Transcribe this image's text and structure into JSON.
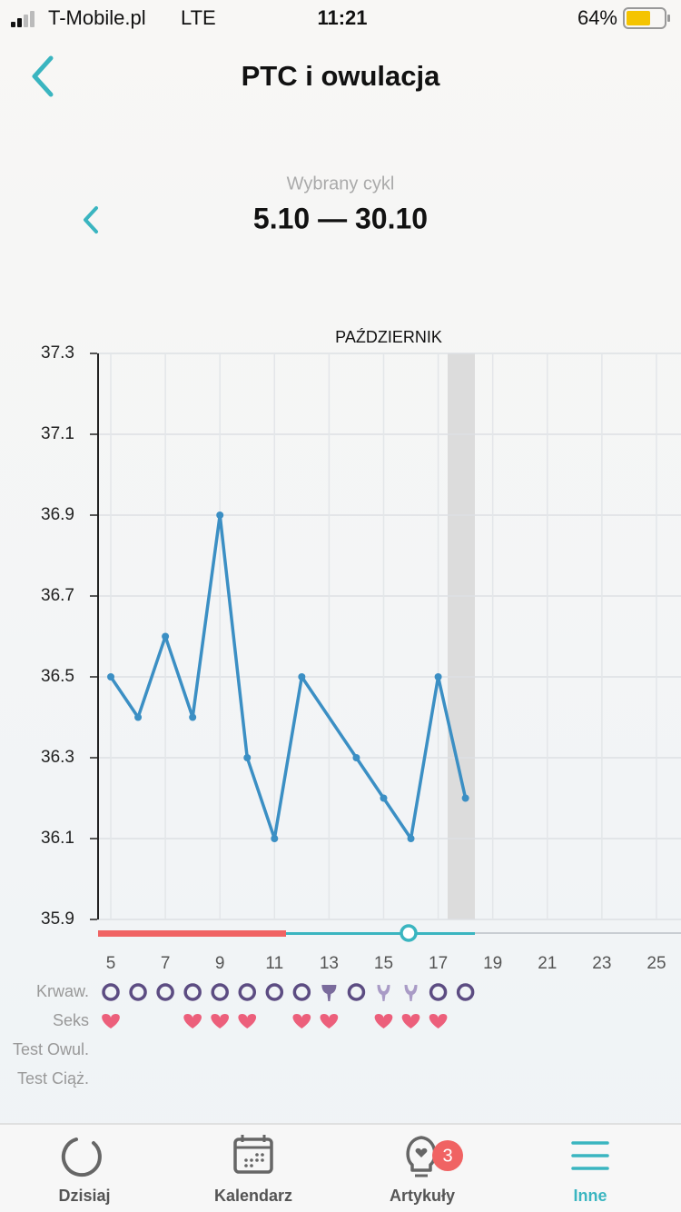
{
  "status_bar": {
    "carrier": "T-Mobile.pl",
    "network": "LTE",
    "time": "11:21",
    "battery": "64%"
  },
  "header": {
    "title": "PTC i owulacja"
  },
  "cycle": {
    "caption": "Wybrany cykl",
    "range": "5.10 — 30.10"
  },
  "chart_data": {
    "type": "line",
    "title": "PAŹDZIERNIK",
    "x": [
      5,
      6,
      7,
      8,
      9,
      10,
      11,
      12,
      14,
      15,
      16,
      17,
      18
    ],
    "values": [
      36.5,
      36.4,
      36.6,
      36.4,
      36.9,
      36.3,
      36.1,
      36.5,
      36.3,
      36.2,
      36.1,
      36.5,
      36.2
    ],
    "color": "#3b8fc4",
    "xlim": [
      4.5,
      25.9
    ],
    "xticks": [
      5,
      7,
      9,
      11,
      13,
      15,
      17,
      19,
      21,
      23,
      25
    ],
    "ylim": [
      35.9,
      37.3
    ],
    "yticks": [
      35.9,
      36.1,
      36.3,
      36.5,
      36.7,
      36.9,
      37.1,
      37.3
    ],
    "grid": true
  },
  "tracker": [
    {
      "label": "Krwaw.",
      "icons": [
        {
          "day": 5,
          "kind": "circle"
        },
        {
          "day": 6,
          "kind": "circle"
        },
        {
          "day": 7,
          "kind": "circle"
        },
        {
          "day": 8,
          "kind": "circle"
        },
        {
          "day": 9,
          "kind": "circle"
        },
        {
          "day": 10,
          "kind": "circle"
        },
        {
          "day": 11,
          "kind": "circle"
        },
        {
          "day": 12,
          "kind": "circle"
        },
        {
          "day": 13,
          "kind": "drop-dark"
        },
        {
          "day": 14,
          "kind": "circle"
        },
        {
          "day": 15,
          "kind": "drop-light"
        },
        {
          "day": 16,
          "kind": "drop-light"
        },
        {
          "day": 17,
          "kind": "circle"
        },
        {
          "day": 18,
          "kind": "circle"
        }
      ]
    },
    {
      "label": "Seks",
      "icons": [
        {
          "day": 5,
          "kind": "heart"
        },
        {
          "day": 8,
          "kind": "heart"
        },
        {
          "day": 9,
          "kind": "heart"
        },
        {
          "day": 10,
          "kind": "heart"
        },
        {
          "day": 12,
          "kind": "heart"
        },
        {
          "day": 13,
          "kind": "heart"
        },
        {
          "day": 15,
          "kind": "heart"
        },
        {
          "day": 16,
          "kind": "heart"
        },
        {
          "day": 17,
          "kind": "heart"
        }
      ]
    },
    {
      "label": "Test Owul.",
      "icons": []
    },
    {
      "label": "Test Ciąż.",
      "icons": []
    }
  ],
  "tabs": [
    {
      "label": "Dzisiaj"
    },
    {
      "label": "Kalendarz"
    },
    {
      "label": "Artykuły",
      "badge": 3
    },
    {
      "label": "Inne"
    }
  ]
}
